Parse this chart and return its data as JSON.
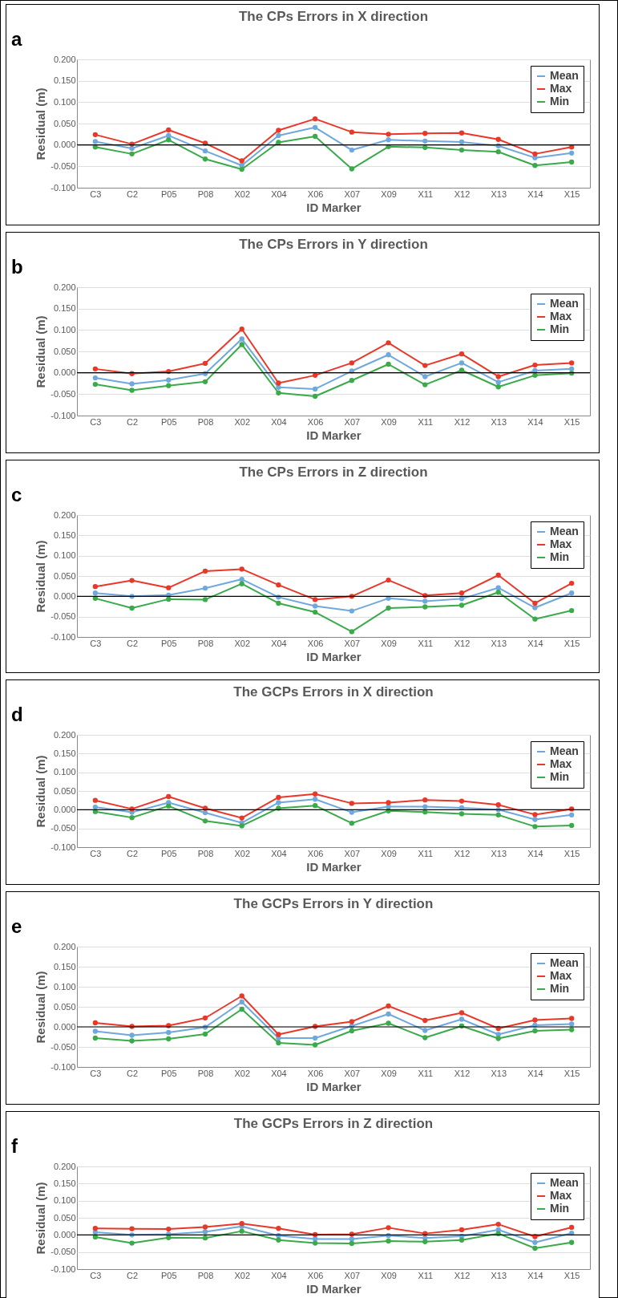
{
  "chart_data": [
    {
      "type": "line",
      "title": "The CPs Errors in X direction",
      "xlabel": "ID Marker",
      "ylabel": "Residual (m)",
      "annotations": [
        "a"
      ],
      "categories": [
        "C3",
        "C2",
        "P05",
        "P08",
        "X02",
        "X04",
        "X06",
        "X07",
        "X09",
        "X11",
        "X12",
        "X13",
        "X14",
        "X15"
      ],
      "ylim": [
        -0.1,
        0.2
      ],
      "yticks": [
        {
          "value": -0.1,
          "label": "-0.100"
        },
        {
          "value": -0.05,
          "label": "-0.050"
        },
        {
          "value": 0,
          "label": "0.000"
        },
        {
          "value": 0.05,
          "label": "0.050"
        },
        {
          "value": 0.1,
          "label": "0.100"
        },
        {
          "value": 0.15,
          "label": "0.150"
        },
        {
          "value": 0.2,
          "label": "0.200"
        }
      ],
      "grid": "y",
      "legend": "top right",
      "marker": "circle",
      "ref_lines": [
        {
          "axis": "y",
          "value": 0,
          "color": "#000000"
        }
      ],
      "series": [
        {
          "name": "Mean",
          "color": "#6fa8dc",
          "values": [
            0.008,
            -0.008,
            0.022,
            -0.014,
            -0.048,
            0.022,
            0.041,
            -0.012,
            0.012,
            0.009,
            0.007,
            -0.002,
            -0.03,
            -0.019
          ]
        },
        {
          "name": "Max",
          "color": "#e8382a",
          "values": [
            0.024,
            0.002,
            0.035,
            0.004,
            -0.037,
            0.034,
            0.061,
            0.03,
            0.025,
            0.027,
            0.028,
            0.013,
            -0.021,
            -0.005
          ]
        },
        {
          "name": "Min",
          "color": "#3aaa4a",
          "values": [
            -0.005,
            -0.021,
            0.012,
            -0.033,
            -0.057,
            0.006,
            0.02,
            -0.056,
            -0.004,
            -0.006,
            -0.012,
            -0.016,
            -0.048,
            -0.04
          ]
        }
      ]
    },
    {
      "type": "line",
      "title": "The CPs Errors in Y direction",
      "xlabel": "ID Marker",
      "ylabel": "Residual (m)",
      "annotations": [
        "b"
      ],
      "categories": [
        "C3",
        "C2",
        "P05",
        "P08",
        "X02",
        "X04",
        "X06",
        "X07",
        "X09",
        "X11",
        "X12",
        "X13",
        "X14",
        "X15"
      ],
      "ylim": [
        -0.1,
        0.2
      ],
      "yticks": [
        {
          "value": -0.1,
          "label": "-0.100"
        },
        {
          "value": -0.05,
          "label": "-0.050"
        },
        {
          "value": 0,
          "label": "0.000"
        },
        {
          "value": 0.05,
          "label": "0.050"
        },
        {
          "value": 0.1,
          "label": "0.100"
        },
        {
          "value": 0.15,
          "label": "0.150"
        },
        {
          "value": 0.2,
          "label": "0.200"
        }
      ],
      "grid": "y",
      "legend": "top right",
      "marker": "circle",
      "ref_lines": [
        {
          "axis": "y",
          "value": 0,
          "color": "#000000"
        }
      ],
      "series": [
        {
          "name": "Mean",
          "color": "#6fa8dc",
          "values": [
            -0.012,
            -0.026,
            -0.017,
            -0.002,
            0.079,
            -0.034,
            -0.038,
            0.004,
            0.042,
            -0.009,
            0.023,
            -0.022,
            0.005,
            0.009
          ]
        },
        {
          "name": "Max",
          "color": "#e8382a",
          "values": [
            0.009,
            -0.002,
            0.003,
            0.022,
            0.102,
            -0.024,
            -0.006,
            0.023,
            0.07,
            0.017,
            0.044,
            -0.009,
            0.018,
            0.023
          ]
        },
        {
          "name": "Min",
          "color": "#3aaa4a",
          "values": [
            -0.027,
            -0.041,
            -0.03,
            -0.021,
            0.066,
            -0.047,
            -0.055,
            -0.018,
            0.02,
            -0.028,
            0.006,
            -0.033,
            -0.006,
            -0.001
          ]
        }
      ]
    },
    {
      "type": "line",
      "title": "The CPs Errors in Z direction",
      "xlabel": "ID Marker",
      "ylabel": "Residual (m)",
      "annotations": [
        "c"
      ],
      "categories": [
        "C3",
        "C2",
        "P05",
        "P08",
        "X02",
        "X04",
        "X06",
        "X07",
        "X09",
        "X11",
        "X12",
        "X13",
        "X14",
        "X15"
      ],
      "ylim": [
        -0.1,
        0.2
      ],
      "yticks": [
        {
          "value": -0.1,
          "label": "-0.100"
        },
        {
          "value": -0.05,
          "label": "-0.050"
        },
        {
          "value": 0,
          "label": "0.000"
        },
        {
          "value": 0.05,
          "label": "0.050"
        },
        {
          "value": 0.1,
          "label": "0.100"
        },
        {
          "value": 0.15,
          "label": "0.150"
        },
        {
          "value": 0.2,
          "label": "0.200"
        }
      ],
      "grid": "y",
      "legend": "top right",
      "marker": "circle",
      "ref_lines": [
        {
          "axis": "y",
          "value": 0,
          "color": "#000000"
        }
      ],
      "series": [
        {
          "name": "Mean",
          "color": "#6fa8dc",
          "values": [
            0.008,
            0.0,
            0.003,
            0.02,
            0.042,
            -0.002,
            -0.024,
            -0.036,
            -0.005,
            -0.012,
            -0.006,
            0.021,
            -0.028,
            0.008
          ]
        },
        {
          "name": "Max",
          "color": "#e8382a",
          "values": [
            0.024,
            0.039,
            0.021,
            0.062,
            0.067,
            0.028,
            -0.008,
            0.0,
            0.04,
            0.002,
            0.008,
            0.052,
            -0.017,
            0.032
          ]
        },
        {
          "name": "Min",
          "color": "#3aaa4a",
          "values": [
            -0.005,
            -0.029,
            -0.007,
            -0.008,
            0.031,
            -0.017,
            -0.039,
            -0.087,
            -0.029,
            -0.026,
            -0.022,
            0.01,
            -0.056,
            -0.035
          ]
        }
      ]
    },
    {
      "type": "line",
      "title": "The GCPs Errors in X direction",
      "xlabel": "ID Marker",
      "ylabel": "Residual (m)",
      "annotations": [
        "d"
      ],
      "categories": [
        "C3",
        "C2",
        "P05",
        "P08",
        "X02",
        "X04",
        "X06",
        "X07",
        "X09",
        "X11",
        "X12",
        "X13",
        "X14",
        "X15"
      ],
      "ylim": [
        -0.1,
        0.2
      ],
      "yticks": [
        {
          "value": -0.1,
          "label": "-0.100"
        },
        {
          "value": -0.05,
          "label": "-0.050"
        },
        {
          "value": 0,
          "label": "0.000"
        },
        {
          "value": 0.05,
          "label": "0.050"
        },
        {
          "value": 0.1,
          "label": "0.100"
        },
        {
          "value": 0.15,
          "label": "0.150"
        },
        {
          "value": 0.2,
          "label": "0.200"
        }
      ],
      "grid": "y",
      "legend": "top right",
      "marker": "circle",
      "ref_lines": [
        {
          "axis": "y",
          "value": 0,
          "color": "#000000"
        }
      ],
      "series": [
        {
          "name": "Mean",
          "color": "#6fa8dc",
          "values": [
            0.007,
            -0.007,
            0.019,
            -0.008,
            -0.035,
            0.019,
            0.028,
            -0.007,
            0.008,
            0.008,
            0.005,
            0.0,
            -0.026,
            -0.014
          ]
        },
        {
          "name": "Max",
          "color": "#e8382a",
          "values": [
            0.025,
            0.002,
            0.035,
            0.004,
            -0.022,
            0.033,
            0.042,
            0.017,
            0.019,
            0.026,
            0.023,
            0.013,
            -0.013,
            0.002
          ]
        },
        {
          "name": "Min",
          "color": "#3aaa4a",
          "values": [
            -0.005,
            -0.021,
            0.01,
            -0.03,
            -0.043,
            0.004,
            0.011,
            -0.036,
            -0.003,
            -0.006,
            -0.011,
            -0.014,
            -0.045,
            -0.042
          ]
        }
      ]
    },
    {
      "type": "line",
      "title": "The GCPs Errors in Y direction",
      "xlabel": "ID Marker",
      "ylabel": "Residual (m)",
      "annotations": [
        "e"
      ],
      "categories": [
        "C3",
        "C2",
        "P05",
        "P08",
        "X02",
        "X04",
        "X06",
        "X07",
        "X09",
        "X11",
        "X12",
        "X13",
        "X14",
        "X15"
      ],
      "ylim": [
        -0.1,
        0.2
      ],
      "yticks": [
        {
          "value": -0.1,
          "label": "-0.100"
        },
        {
          "value": -0.05,
          "label": "-0.050"
        },
        {
          "value": 0,
          "label": "0.000"
        },
        {
          "value": 0.05,
          "label": "0.050"
        },
        {
          "value": 0.1,
          "label": "0.100"
        },
        {
          "value": 0.15,
          "label": "0.150"
        },
        {
          "value": 0.2,
          "label": "0.200"
        }
      ],
      "grid": "y",
      "legend": "top right",
      "marker": "circle",
      "ref_lines": [
        {
          "axis": "y",
          "value": 0,
          "color": "#000000"
        }
      ],
      "series": [
        {
          "name": "Mean",
          "color": "#6fa8dc",
          "values": [
            -0.011,
            -0.021,
            -0.014,
            -0.001,
            0.062,
            -0.028,
            -0.028,
            0.002,
            0.032,
            -0.009,
            0.019,
            -0.019,
            0.004,
            0.007
          ]
        },
        {
          "name": "Max",
          "color": "#e8382a",
          "values": [
            0.01,
            0.001,
            0.003,
            0.022,
            0.077,
            -0.019,
            0.001,
            0.013,
            0.052,
            0.016,
            0.035,
            -0.004,
            0.017,
            0.021
          ]
        },
        {
          "name": "Min",
          "color": "#3aaa4a",
          "values": [
            -0.028,
            -0.035,
            -0.03,
            -0.018,
            0.044,
            -0.04,
            -0.045,
            -0.01,
            0.009,
            -0.027,
            0.002,
            -0.029,
            -0.01,
            -0.007
          ]
        }
      ]
    },
    {
      "type": "line",
      "title": "The GCPs Errors in Z direction",
      "xlabel": "ID Marker",
      "ylabel": "Residual (m)",
      "annotations": [
        "f"
      ],
      "categories": [
        "C3",
        "C2",
        "P05",
        "P08",
        "X02",
        "X04",
        "X06",
        "X07",
        "X09",
        "X11",
        "X12",
        "X13",
        "X14",
        "X15"
      ],
      "ylim": [
        -0.1,
        0.2
      ],
      "yticks": [
        {
          "value": -0.1,
          "label": "-0.100"
        },
        {
          "value": -0.05,
          "label": "-0.050"
        },
        {
          "value": 0,
          "label": "0.000"
        },
        {
          "value": 0.05,
          "label": "0.050"
        },
        {
          "value": 0.1,
          "label": "0.100"
        },
        {
          "value": 0.15,
          "label": "0.150"
        },
        {
          "value": 0.2,
          "label": "0.200"
        }
      ],
      "grid": "y",
      "legend": "top right",
      "marker": "circle",
      "ref_lines": [
        {
          "axis": "y",
          "value": 0,
          "color": "#000000"
        }
      ],
      "series": [
        {
          "name": "Mean",
          "color": "#6fa8dc",
          "values": [
            0.008,
            0.0,
            0.002,
            0.009,
            0.025,
            -0.002,
            -0.012,
            -0.012,
            -0.002,
            -0.009,
            -0.004,
            0.015,
            -0.022,
            0.005
          ]
        },
        {
          "name": "Max",
          "color": "#e8382a",
          "values": [
            0.019,
            0.018,
            0.017,
            0.023,
            0.033,
            0.019,
            0.001,
            0.002,
            0.021,
            0.004,
            0.015,
            0.031,
            -0.005,
            0.022
          ]
        },
        {
          "name": "Min",
          "color": "#3aaa4a",
          "values": [
            -0.006,
            -0.024,
            -0.008,
            -0.009,
            0.011,
            -0.015,
            -0.024,
            -0.025,
            -0.018,
            -0.02,
            -0.015,
            0.004,
            -0.039,
            -0.022
          ]
        }
      ]
    }
  ]
}
